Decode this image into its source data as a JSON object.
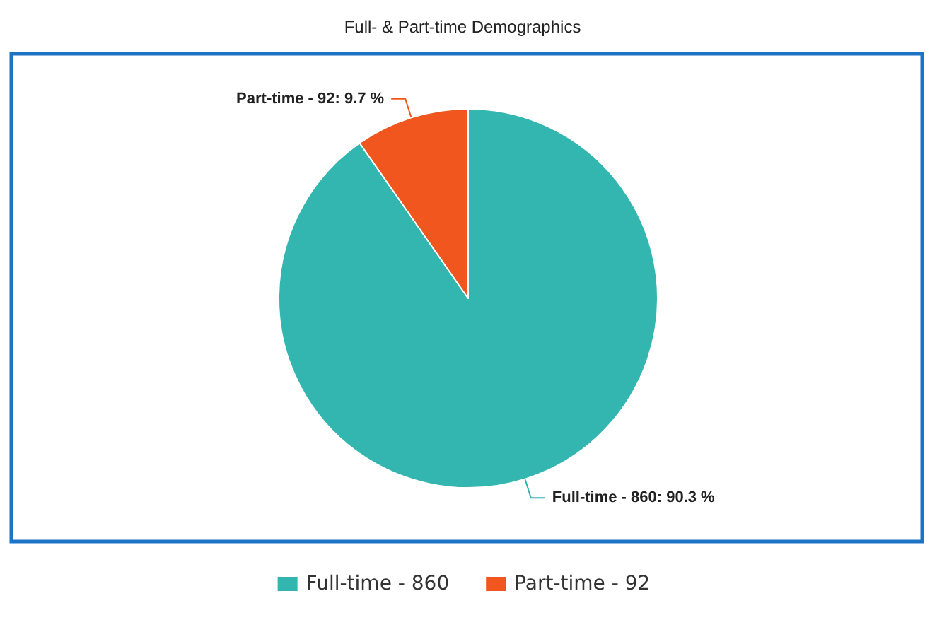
{
  "chart_data": {
    "type": "pie",
    "title": "Full- & Part-time Demographics",
    "categories": [
      "Full-time - 860",
      "Part-time - 92"
    ],
    "values": [
      90.3,
      9.7
    ],
    "colors": [
      "#33b5b0",
      "#f0561d"
    ],
    "value_labels": [
      "Full-time - 860: 90.3 %",
      "Part-time - 92: 9.7 %"
    ],
    "legend": "bottom"
  }
}
